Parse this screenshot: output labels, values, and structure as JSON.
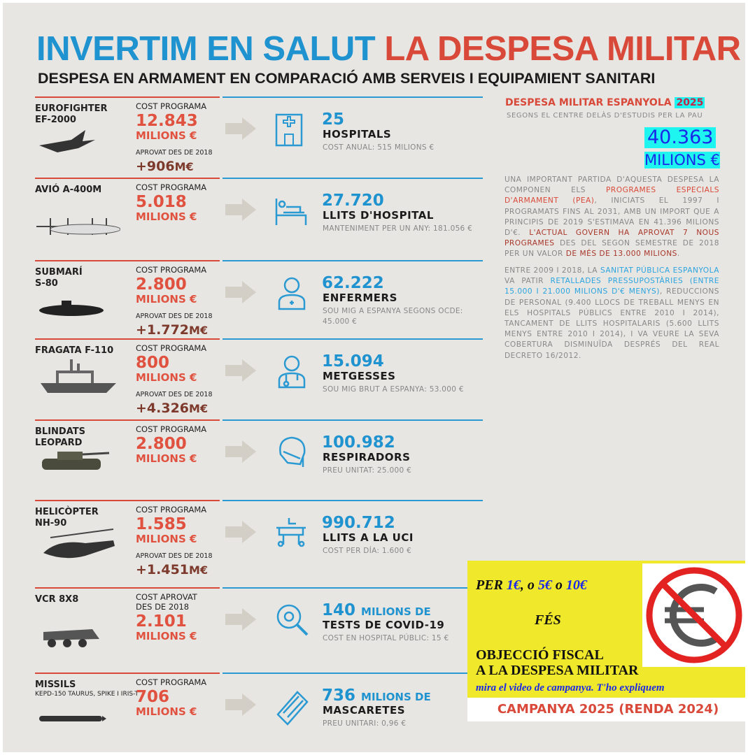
{
  "header": {
    "title_blue": "INVERTIM EN SALUT",
    "title_red": "LA DESPESA MILITAR",
    "subtitle": "DESPESA EN ARMAMENT EN COMPARACIÓ AMB SERVEIS I EQUIPAMIENT SANITARI"
  },
  "rows": [
    {
      "name": [
        "EUROFIGHTER",
        "EF-2000"
      ],
      "cost_label": [
        "COST PROGRAMA"
      ],
      "cost": "12.843",
      "cost_unit": "MILIONS €",
      "approved_label": "APROVAT DES DE 2018",
      "increase": "+906",
      "increase_unit": "M€",
      "health_number": "25",
      "health_label": "HOSPITALS",
      "health_note": "COST ANUAL: 515 MILIONS €"
    },
    {
      "name": [
        "AVIÓ A-400M"
      ],
      "cost_label": [
        "COST PROGRAMA"
      ],
      "cost": "5.018",
      "cost_unit": "MILIONS €",
      "health_number": "27.720",
      "health_label": "LLITS D'HOSPITAL",
      "health_note": "MANTENIMENT PER UN ANY: 181.056 €"
    },
    {
      "name": [
        "SUBMARÍ",
        "S-80"
      ],
      "cost_label": [
        "COST PROGRAMA"
      ],
      "cost": "2.800",
      "cost_unit": "MILIONS €",
      "approved_label": "APROVAT DES DE 2018",
      "increase": "+1.772",
      "increase_unit": "M€",
      "health_number": "62.222",
      "health_label": "ENFERMERS",
      "health_note": "SOU MIG A ESPANYA SEGONS OCDE: 45.000 €"
    },
    {
      "name": [
        "FRAGATA F-110"
      ],
      "cost_label": [
        "COST PROGRAMA"
      ],
      "cost": "800",
      "cost_unit": "MILIONS €",
      "approved_label": "APROVAT DES DE 2018",
      "increase": "+4.326",
      "increase_unit": "M€",
      "health_number": "15.094",
      "health_label": "METGESSES",
      "health_note": "SOU MIG BRUT A ESPANYA: 53.000 €"
    },
    {
      "name": [
        "BLINDATS",
        "LEOPARD"
      ],
      "cost_label": [
        "COST PROGRAMA"
      ],
      "cost": "2.800",
      "cost_unit": "MILIONS €",
      "health_number": "100.982",
      "health_label": "RESPIRADORS",
      "health_note": "PREU UNITAT: 25.000 €"
    },
    {
      "name": [
        "HELICÒPTER",
        "NH-90"
      ],
      "cost_label": [
        "COST PROGRAMA"
      ],
      "cost": "1.585",
      "cost_unit": "MILIONS €",
      "approved_label": "APROVAT DES DE 2018",
      "increase": "+1.451",
      "increase_unit": "M€",
      "health_number": "990.712",
      "health_label": "LLITS A LA UCI",
      "health_note": "COST PER DÍA: 1.600 €"
    },
    {
      "name": [
        "VCR 8X8"
      ],
      "cost_label": [
        "COST APROVAT",
        "DES DE 2018"
      ],
      "cost": "2.101",
      "cost_unit": "MILIONS €",
      "health_number": "140",
      "health_number_suffix": "MILIONS DE",
      "health_label": "TESTS DE COVID-19",
      "health_note": "COST EN HOSPITAL PÚBLIC: 15 €"
    },
    {
      "name": [
        "MISSILS"
      ],
      "name_sub": "KEPD-150 TAURUS, SPIKE I IRIS-T",
      "cost_label": [
        "COST PROGRAMA"
      ],
      "cost": "706",
      "cost_unit": "MILIONS €",
      "health_number": "736",
      "health_number_suffix": "MILIONS DE",
      "health_label": "MASCARETES",
      "health_note": "PREU UNITARI: 0,96 €"
    }
  ],
  "side": {
    "heading": "DESPESA MILITAR ESPANYOLA",
    "year": "2025",
    "source": "SEGONS EL CENTRE DELÀS D'ESTUDIS PER LA PAU",
    "total": "40.363",
    "total_unit": "MILIONS €",
    "paragraph1": [
      "UNA IMPORTANT PARTIDA D'AQUESTA DESPESA LA COMPONEN ELS ",
      "PROGRAMES ESPECIALS D'ARMAMENT (PEA)",
      ", INICIATS EL 1997 I PROGRAMATS FINS AL 2031, AMB UN IMPORT QUE A PRINCIPIS DE 2019 S'ESTIMAVA EN 41.396 MILIONS D'€. ",
      "L'ACTUAL GOVERN HA APROVAT 7 NOUS PROGRAMES",
      " DES DEL SEGON SEMESTRE DE 2018 PER UN VALOR ",
      "DE MÉS DE 13.000 MILIONS",
      "."
    ],
    "paragraph2": [
      "ENTRE 2009 I 2018, LA ",
      "SANITAT PÚBLICA ESPANYOLA",
      " VA PATIR ",
      "RETALLADES PRESSUPOSTÀRIES (ENTRE 15.000 I 21.000 MILIONS D'€ MENYS)",
      ", REDUCCIONS DE PERSONAL (9.400 LLOCS DE TREBALL MENYS EN ELS HOSPITALS PÚBLICS ENTRE 2010 I 2014), TANCAMENT DE LLITS HOSPITALARIS (5.600 LLITS MENYS ENTRE 2010 I 2014), I VA VEURE LA SEVA COBERTURA DISMINUÏDA DESPRÉS DEL REAL DECRETO 16/2012."
    ]
  },
  "campaign": {
    "line1": [
      "PER ",
      "1€",
      ", o ",
      "5€",
      " o ",
      "10€"
    ],
    "line2": "FÉS",
    "line3": "OBJECCIÓ FISCAL",
    "line4": "A LA DESPESA MILITAR",
    "video": "mira el video de campanya. T'ho expliquem",
    "footer": "CAMPANYA 2025 (RENDA 2024)"
  }
}
